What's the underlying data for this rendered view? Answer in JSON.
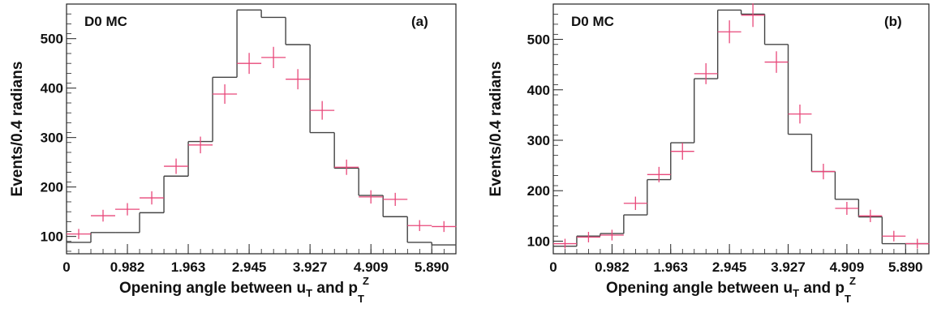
{
  "chart_data": [
    {
      "type": "histogram",
      "panel_label": "(a)",
      "corner_label": "D0 MC",
      "xlabel_parts": [
        "Opening angle between u",
        "T",
        " and p",
        "T",
        "Z"
      ],
      "ylabel": "Events/0.4 radians",
      "xlim": [
        0,
        6.28
      ],
      "ylim": [
        65,
        570
      ],
      "x_ticks": [
        0,
        0.982,
        1.963,
        2.945,
        3.927,
        4.909,
        5.89
      ],
      "x_tick_labels": [
        "0",
        "0.982",
        "1.963",
        "2.945",
        "3.927",
        "4.909",
        "5.890"
      ],
      "y_ticks": [
        100,
        200,
        300,
        400,
        500
      ],
      "y_tick_labels": [
        "100",
        "200",
        "300",
        "400",
        "500"
      ],
      "bin_edges": [
        0,
        0.3927,
        0.7854,
        1.1781,
        1.5708,
        1.9635,
        2.3562,
        2.7489,
        3.1416,
        3.5343,
        3.927,
        4.3197,
        4.7124,
        5.1051,
        5.4978,
        5.8905,
        6.2832
      ],
      "series": [
        {
          "kind": "histogram",
          "color": "#444444",
          "values": [
            88,
            108,
            108,
            148,
            222,
            292,
            422,
            558,
            543,
            488,
            310,
            238,
            183,
            140,
            88,
            83
          ]
        },
        {
          "kind": "points",
          "color": "#e8487a",
          "values": [
            105,
            142,
            155,
            178,
            242,
            285,
            388,
            450,
            462,
            418,
            355,
            240,
            180,
            175,
            122,
            120
          ]
        }
      ]
    },
    {
      "type": "histogram",
      "panel_label": "(b)",
      "corner_label": "D0 MC",
      "xlabel_parts": [
        "Opening angle between u",
        "T",
        " and p",
        "T",
        "Z"
      ],
      "ylabel": "Events/0.4 radians",
      "xlim": [
        0,
        6.28
      ],
      "ylim": [
        75,
        570
      ],
      "x_ticks": [
        0,
        0.982,
        1.963,
        2.945,
        3.927,
        4.909,
        5.89
      ],
      "x_tick_labels": [
        "0",
        "0.982",
        "1.963",
        "2.945",
        "3.927",
        "4.909",
        "5.890"
      ],
      "y_ticks": [
        100,
        200,
        300,
        400,
        500
      ],
      "y_tick_labels": [
        "100",
        "200",
        "300",
        "400",
        "500"
      ],
      "bin_edges": [
        0,
        0.3927,
        0.7854,
        1.1781,
        1.5708,
        1.9635,
        2.3562,
        2.7489,
        3.1416,
        3.5343,
        3.927,
        4.3197,
        4.7124,
        5.1051,
        5.4978,
        5.8905,
        6.2832
      ],
      "series": [
        {
          "kind": "histogram",
          "color": "#444444",
          "values": [
            90,
            110,
            115,
            152,
            222,
            295,
            422,
            558,
            550,
            490,
            312,
            238,
            183,
            148,
            95,
            95
          ]
        },
        {
          "kind": "points",
          "color": "#e8487a",
          "values": [
            95,
            108,
            112,
            175,
            232,
            278,
            432,
            515,
            548,
            455,
            352,
            238,
            165,
            150,
            110,
            95
          ]
        }
      ]
    }
  ]
}
